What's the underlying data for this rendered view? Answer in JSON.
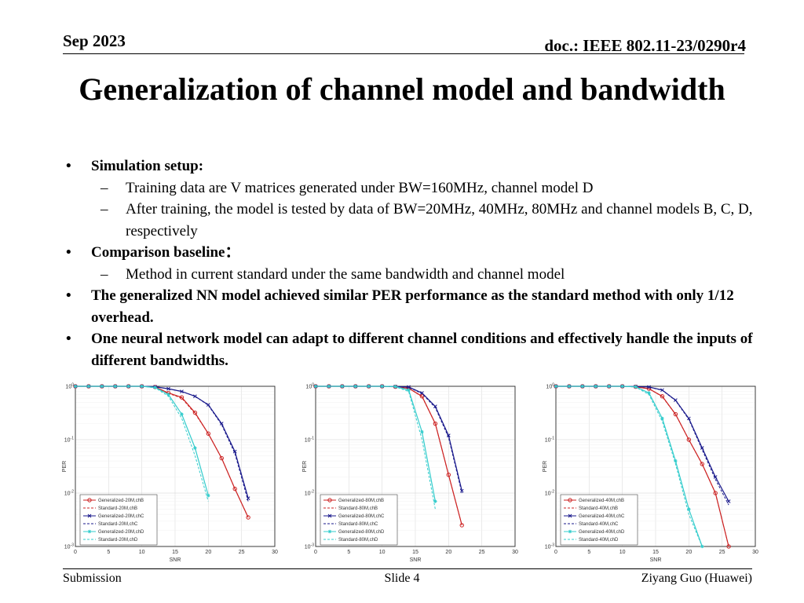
{
  "header": {
    "date": "Sep 2023",
    "doc": "doc.: IEEE 802.11-23/0290r4"
  },
  "title": "Generalization of channel model and bandwidth",
  "bullets": {
    "setup_label": "Simulation setup:",
    "setup_items": [
      "Training data are V matrices generated under BW=160MHz, channel model D",
      "After training, the model is tested by data of BW=20MHz, 40MHz, 80MHz and channel models B, C, D, respectively"
    ],
    "baseline_label": "Comparison baseline：",
    "baseline_items": [
      "Method in current standard under the same bandwidth and channel model"
    ],
    "point3": "The generalized NN model achieved similar PER performance as the standard method with only 1/12 overhead.",
    "point4": "One neural network model can adapt to different channel conditions and effectively handle the inputs of different bandwidths."
  },
  "footer": {
    "left": "Submission",
    "center": "Slide 4",
    "right": "Ziyang Guo (Huawei)"
  },
  "colors": {
    "chB": "#cc2222",
    "chC": "#1a1a8c",
    "chD": "#33cccc",
    "grid": "#dddddd",
    "axis": "#222222"
  },
  "chart_data": [
    {
      "type": "line",
      "xlabel": "SNR",
      "ylabel": "PER",
      "xlim": [
        0,
        30
      ],
      "ylim": [
        0.001,
        1
      ],
      "yscale": "log",
      "xticks": [
        0,
        5,
        10,
        15,
        20,
        25,
        30
      ],
      "ytick_labels": [
        "10^0",
        "10^-1",
        "10^-2",
        "10^-3"
      ],
      "grid": true,
      "legend_position": "bottom-left",
      "series": [
        {
          "name": "Generalized-20M,chB",
          "group": "chB",
          "dashed": false,
          "marker": "circle",
          "x": [
            0,
            2,
            4,
            6,
            8,
            10,
            12,
            14,
            16,
            18,
            20,
            22,
            24,
            26
          ],
          "y": [
            1,
            1,
            1,
            1,
            1,
            1,
            0.97,
            0.75,
            0.62,
            0.32,
            0.13,
            0.045,
            0.012,
            0.0035
          ]
        },
        {
          "name": "Standard-20M,chB",
          "group": "chB",
          "dashed": true,
          "marker": "none",
          "x": [
            0,
            2,
            4,
            6,
            8,
            10,
            12,
            14,
            16,
            18,
            20,
            22,
            24,
            26
          ],
          "y": [
            1,
            1,
            1,
            1,
            1,
            1,
            0.97,
            0.74,
            0.6,
            0.31,
            0.13,
            0.045,
            0.012,
            0.0035
          ]
        },
        {
          "name": "Generalized-20M,chC",
          "group": "chC",
          "dashed": false,
          "marker": "x",
          "x": [
            0,
            2,
            4,
            6,
            8,
            10,
            12,
            14,
            16,
            18,
            20,
            22,
            24,
            26
          ],
          "y": [
            1,
            1,
            1,
            1,
            1,
            1,
            0.98,
            0.9,
            0.8,
            0.65,
            0.45,
            0.2,
            0.06,
            0.008
          ]
        },
        {
          "name": "Standard-20M,chC",
          "group": "chC",
          "dashed": true,
          "marker": "none",
          "x": [
            0,
            2,
            4,
            6,
            8,
            10,
            12,
            14,
            16,
            18,
            20,
            22,
            24,
            26
          ],
          "y": [
            1,
            1,
            1,
            1,
            1,
            1,
            0.98,
            0.9,
            0.8,
            0.65,
            0.44,
            0.19,
            0.055,
            0.007
          ]
        },
        {
          "name": "Generalized-20M,chD",
          "group": "chD",
          "dashed": false,
          "marker": "star",
          "x": [
            0,
            2,
            4,
            6,
            8,
            10,
            12,
            14,
            16,
            18,
            20
          ],
          "y": [
            1,
            1,
            1,
            1,
            1,
            1,
            0.95,
            0.7,
            0.3,
            0.07,
            0.009
          ]
        },
        {
          "name": "Standard-20M,chD",
          "group": "chD",
          "dashed": true,
          "marker": "none",
          "x": [
            0,
            2,
            4,
            6,
            8,
            10,
            12,
            14,
            16,
            18,
            20
          ],
          "y": [
            1,
            1,
            1,
            1,
            1,
            1,
            0.94,
            0.65,
            0.25,
            0.05,
            0.007
          ]
        }
      ]
    },
    {
      "type": "line",
      "xlabel": "SNR",
      "ylabel": "PER",
      "xlim": [
        0,
        30
      ],
      "ylim": [
        0.001,
        1
      ],
      "yscale": "log",
      "xticks": [
        0,
        5,
        10,
        15,
        20,
        25,
        30
      ],
      "ytick_labels": [
        "10^0",
        "10^-1",
        "10^-2",
        "10^-3"
      ],
      "grid": true,
      "legend_position": "bottom-left",
      "series": [
        {
          "name": "Generalized-80M,chB",
          "group": "chB",
          "dashed": false,
          "marker": "circle",
          "x": [
            0,
            2,
            4,
            6,
            8,
            10,
            12,
            14,
            16,
            18,
            20,
            22
          ],
          "y": [
            1,
            1,
            1,
            1,
            1,
            1,
            0.98,
            0.92,
            0.65,
            0.2,
            0.022,
            0.0025
          ]
        },
        {
          "name": "Standard-80M,chB",
          "group": "chB",
          "dashed": true,
          "marker": "none",
          "x": [
            0,
            2,
            4,
            6,
            8,
            10,
            12,
            14,
            16,
            18,
            20,
            22
          ],
          "y": [
            1,
            1,
            1,
            1,
            1,
            1,
            0.98,
            0.92,
            0.64,
            0.2,
            0.022,
            0.0025
          ]
        },
        {
          "name": "Generalized-80M,chC",
          "group": "chC",
          "dashed": false,
          "marker": "x",
          "x": [
            0,
            2,
            4,
            6,
            8,
            10,
            12,
            14,
            16,
            18,
            20,
            22
          ],
          "y": [
            1,
            1,
            1,
            1,
            1,
            1,
            0.99,
            0.97,
            0.75,
            0.42,
            0.12,
            0.011
          ]
        },
        {
          "name": "Standard-80M,chC",
          "group": "chC",
          "dashed": true,
          "marker": "none",
          "x": [
            0,
            2,
            4,
            6,
            8,
            10,
            12,
            14,
            16,
            18,
            20,
            22
          ],
          "y": [
            1,
            1,
            1,
            1,
            1,
            1,
            0.99,
            0.96,
            0.73,
            0.4,
            0.11,
            0.01
          ]
        },
        {
          "name": "Generalized-80M,chD",
          "group": "chD",
          "dashed": false,
          "marker": "star",
          "x": [
            0,
            2,
            4,
            6,
            8,
            10,
            12,
            14,
            16,
            18
          ],
          "y": [
            1,
            1,
            1,
            1,
            1,
            1,
            0.99,
            0.85,
            0.14,
            0.007
          ]
        },
        {
          "name": "Standard-80M,chD",
          "group": "chD",
          "dashed": true,
          "marker": "none",
          "x": [
            0,
            2,
            4,
            6,
            8,
            10,
            12,
            14,
            16,
            18
          ],
          "y": [
            1,
            1,
            1,
            1,
            1,
            1,
            0.98,
            0.8,
            0.1,
            0.005
          ]
        }
      ]
    },
    {
      "type": "line",
      "xlabel": "SNR",
      "ylabel": "PER",
      "xlim": [
        0,
        30
      ],
      "ylim": [
        0.001,
        1
      ],
      "yscale": "log",
      "xticks": [
        0,
        5,
        10,
        15,
        20,
        25,
        30
      ],
      "ytick_labels": [
        "10^0",
        "10^-1",
        "10^-2",
        "10^-3"
      ],
      "grid": true,
      "legend_position": "bottom-left",
      "series": [
        {
          "name": "Generalized-40M,chB",
          "group": "chB",
          "dashed": false,
          "marker": "circle",
          "x": [
            0,
            2,
            4,
            6,
            8,
            10,
            12,
            14,
            16,
            18,
            20,
            22,
            24,
            26
          ],
          "y": [
            1,
            1,
            1,
            1,
            1,
            1,
            0.98,
            0.9,
            0.65,
            0.3,
            0.1,
            0.035,
            0.01,
            0.001
          ]
        },
        {
          "name": "Standard-40M,chB",
          "group": "chB",
          "dashed": true,
          "marker": "none",
          "x": [
            0,
            2,
            4,
            6,
            8,
            10,
            12,
            14,
            16,
            18,
            20,
            22,
            24,
            26
          ],
          "y": [
            1,
            1,
            1,
            1,
            1,
            1,
            0.98,
            0.9,
            0.64,
            0.3,
            0.1,
            0.035,
            0.01,
            0.001
          ]
        },
        {
          "name": "Generalized-40M,chC",
          "group": "chC",
          "dashed": false,
          "marker": "x",
          "x": [
            0,
            2,
            4,
            6,
            8,
            10,
            12,
            14,
            16,
            18,
            20,
            22,
            24,
            26
          ],
          "y": [
            1,
            1,
            1,
            1,
            1,
            1,
            0.99,
            0.97,
            0.85,
            0.55,
            0.25,
            0.07,
            0.02,
            0.007
          ]
        },
        {
          "name": "Standard-40M,chC",
          "group": "chC",
          "dashed": true,
          "marker": "none",
          "x": [
            0,
            2,
            4,
            6,
            8,
            10,
            12,
            14,
            16,
            18,
            20,
            22,
            24,
            26
          ],
          "y": [
            1,
            1,
            1,
            1,
            1,
            1,
            0.99,
            0.97,
            0.84,
            0.54,
            0.24,
            0.065,
            0.018,
            0.006
          ]
        },
        {
          "name": "Generalized-40M,chD",
          "group": "chD",
          "dashed": false,
          "marker": "star",
          "x": [
            0,
            2,
            4,
            6,
            8,
            10,
            12,
            14,
            16,
            18,
            20,
            22
          ],
          "y": [
            1,
            1,
            1,
            1,
            1,
            1,
            0.98,
            0.75,
            0.25,
            0.04,
            0.005,
            0.001
          ]
        },
        {
          "name": "Standard-40M,chD",
          "group": "chD",
          "dashed": true,
          "marker": "none",
          "x": [
            0,
            2,
            4,
            6,
            8,
            10,
            12,
            14,
            16,
            18,
            20,
            22
          ],
          "y": [
            1,
            1,
            1,
            1,
            1,
            1,
            0.97,
            0.7,
            0.22,
            0.035,
            0.004,
            0.001
          ]
        }
      ]
    }
  ]
}
